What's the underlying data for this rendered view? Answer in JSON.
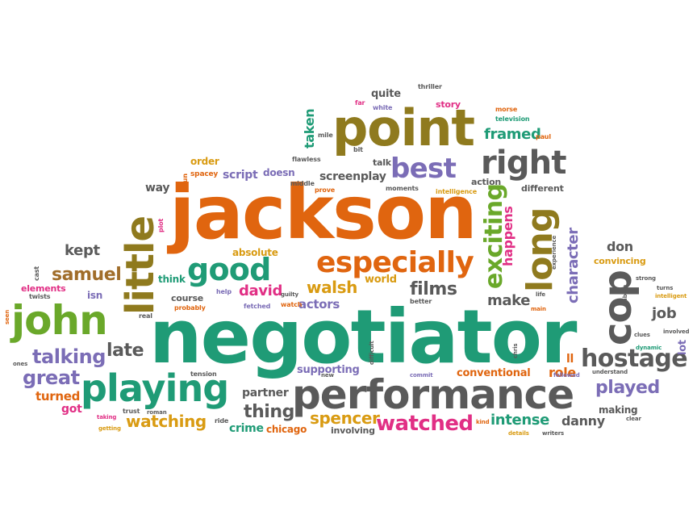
{
  "palette": {
    "green": "#1f9b76",
    "orange": "#e0650f",
    "olive": "#8f7a1e",
    "purple": "#7b6db6",
    "pink": "#e12f85",
    "gray": "#5a5a5a",
    "lime": "#6aa82a",
    "gold": "#d99b12",
    "brown": "#a06d2a"
  },
  "cloud": {
    "words": [
      {
        "id": "jackson",
        "text": "jackson",
        "color": "orange"
      },
      {
        "id": "negotiator",
        "text": "negotiator",
        "color": "green"
      },
      {
        "id": "point",
        "text": "point",
        "color": "olive"
      },
      {
        "id": "performance",
        "text": "performance",
        "color": "gray"
      },
      {
        "id": "playing",
        "text": "playing",
        "color": "green"
      },
      {
        "id": "john",
        "text": "john",
        "color": "lime"
      },
      {
        "id": "little",
        "text": "little",
        "color": "olive"
      },
      {
        "id": "good",
        "text": "good",
        "color": "green"
      },
      {
        "id": "especially",
        "text": "especially",
        "color": "orange"
      },
      {
        "id": "cop",
        "text": "cop",
        "color": "gray"
      },
      {
        "id": "long",
        "text": "long",
        "color": "olive"
      },
      {
        "id": "right",
        "text": "right",
        "color": "gray"
      },
      {
        "id": "best",
        "text": "best",
        "color": "purple"
      },
      {
        "id": "exciting",
        "text": "exciting",
        "color": "lime"
      },
      {
        "id": "hostage",
        "text": "hostage",
        "color": "gray"
      },
      {
        "id": "watched",
        "text": "watched",
        "color": "pink"
      },
      {
        "id": "talking",
        "text": "talking",
        "color": "purple"
      },
      {
        "id": "great",
        "text": "great",
        "color": "purple"
      },
      {
        "id": "samuel",
        "text": "samuel",
        "color": "brown"
      },
      {
        "id": "late",
        "text": "late",
        "color": "gray"
      },
      {
        "id": "watching",
        "text": "watching",
        "color": "gold"
      },
      {
        "id": "thing",
        "text": "thing",
        "color": "gray"
      },
      {
        "id": "spencer",
        "text": "spencer",
        "color": "gold"
      },
      {
        "id": "films",
        "text": "films",
        "color": "gray"
      },
      {
        "id": "walsh",
        "text": "walsh",
        "color": "gold"
      },
      {
        "id": "david",
        "text": "david",
        "color": "pink"
      },
      {
        "id": "actors",
        "text": "actors",
        "color": "purple"
      },
      {
        "id": "make",
        "text": "make",
        "color": "gray"
      },
      {
        "id": "character",
        "text": "character",
        "color": "purple"
      },
      {
        "id": "played",
        "text": "played",
        "color": "purple"
      },
      {
        "id": "intense",
        "text": "intense",
        "color": "green"
      },
      {
        "id": "danny",
        "text": "danny",
        "color": "gray"
      },
      {
        "id": "role",
        "text": "role",
        "color": "orange"
      },
      {
        "id": "kept",
        "text": "kept",
        "color": "gray"
      },
      {
        "id": "job",
        "text": "job",
        "color": "gray"
      },
      {
        "id": "framed",
        "text": "framed",
        "color": "green"
      },
      {
        "id": "screenplay",
        "text": "screenplay",
        "color": "gray"
      },
      {
        "id": "script",
        "text": "script",
        "color": "purple"
      },
      {
        "id": "happens",
        "text": "happens",
        "color": "pink"
      },
      {
        "id": "don",
        "text": "don",
        "color": "gray"
      },
      {
        "id": "turned",
        "text": "turned",
        "color": "orange"
      },
      {
        "id": "got",
        "text": "got",
        "color": "pink"
      },
      {
        "id": "crime",
        "text": "crime",
        "color": "green"
      },
      {
        "id": "chicago",
        "text": "chicago",
        "color": "orange"
      },
      {
        "id": "partner",
        "text": "partner",
        "color": "gray"
      },
      {
        "id": "supporting",
        "text": "supporting",
        "color": "purple"
      },
      {
        "id": "conventional",
        "text": "conventional",
        "color": "orange"
      },
      {
        "id": "ll",
        "text": "ll",
        "color": "orange"
      },
      {
        "id": "making",
        "text": "making",
        "color": "gray"
      },
      {
        "id": "world",
        "text": "world",
        "color": "gold"
      },
      {
        "id": "quite",
        "text": "quite",
        "color": "gray"
      },
      {
        "id": "taken",
        "text": "taken",
        "color": "green"
      },
      {
        "id": "way",
        "text": "way",
        "color": "gray"
      },
      {
        "id": "order",
        "text": "order",
        "color": "gold"
      },
      {
        "id": "isn",
        "text": "isn",
        "color": "purple"
      },
      {
        "id": "think",
        "text": "think",
        "color": "green"
      },
      {
        "id": "absolute",
        "text": "absolute",
        "color": "gold"
      },
      {
        "id": "course",
        "text": "course",
        "color": "gray"
      },
      {
        "id": "elements",
        "text": "elements",
        "color": "pink"
      },
      {
        "id": "story",
        "text": "story",
        "color": "pink"
      },
      {
        "id": "doesn",
        "text": "doesn",
        "color": "purple"
      },
      {
        "id": "action",
        "text": "action",
        "color": "gray"
      },
      {
        "id": "different",
        "text": "different",
        "color": "gray"
      },
      {
        "id": "convincing",
        "text": "convincing",
        "color": "gold"
      },
      {
        "id": "involving",
        "text": "involving",
        "color": "gray"
      },
      {
        "id": "lot",
        "text": "lot",
        "color": "purple"
      },
      {
        "id": "talk",
        "text": "talk",
        "color": "gray"
      },
      {
        "id": "thriller",
        "text": "thriller",
        "color": "gray"
      },
      {
        "id": "television",
        "text": "television",
        "color": "green"
      },
      {
        "id": "morse",
        "text": "morse",
        "color": "orange"
      },
      {
        "id": "paul",
        "text": "paul",
        "color": "orange"
      },
      {
        "id": "flawless",
        "text": "flawless",
        "color": "gray"
      },
      {
        "id": "spacey",
        "text": "spacey",
        "color": "orange"
      },
      {
        "id": "middle",
        "text": "middle",
        "color": "gray"
      },
      {
        "id": "prove",
        "text": "prove",
        "color": "orange"
      },
      {
        "id": "moments",
        "text": "moments",
        "color": "gray"
      },
      {
        "id": "intelligence",
        "text": "intelligence",
        "color": "gold"
      },
      {
        "id": "mile",
        "text": "mile",
        "color": "gray"
      },
      {
        "id": "bit",
        "text": "bit",
        "color": "gray"
      },
      {
        "id": "far",
        "text": "far",
        "color": "pink"
      },
      {
        "id": "white",
        "text": "white",
        "color": "purple"
      },
      {
        "id": "run",
        "text": "run",
        "color": "orange"
      },
      {
        "id": "plot",
        "text": "plot",
        "color": "pink"
      },
      {
        "id": "cast",
        "text": "cast",
        "color": "gray"
      },
      {
        "id": "twists",
        "text": "twists",
        "color": "gray"
      },
      {
        "id": "help",
        "text": "help",
        "color": "purple"
      },
      {
        "id": "probably",
        "text": "probably",
        "color": "orange"
      },
      {
        "id": "fetched",
        "text": "fetched",
        "color": "purple"
      },
      {
        "id": "guilty",
        "text": "guilty",
        "color": "gray"
      },
      {
        "id": "watch",
        "text": "watch",
        "color": "orange"
      },
      {
        "id": "better",
        "text": "better",
        "color": "gray"
      },
      {
        "id": "real",
        "text": "real",
        "color": "gray"
      },
      {
        "id": "seen",
        "text": "seen",
        "color": "orange"
      },
      {
        "id": "ones",
        "text": "ones",
        "color": "gray"
      },
      {
        "id": "tension",
        "text": "tension",
        "color": "gray"
      },
      {
        "id": "trust",
        "text": "trust",
        "color": "gray"
      },
      {
        "id": "roman",
        "text": "roman",
        "color": "gray"
      },
      {
        "id": "taking",
        "text": "taking",
        "color": "pink"
      },
      {
        "id": "getting",
        "text": "getting",
        "color": "gold"
      },
      {
        "id": "ride",
        "text": "ride",
        "color": "gray"
      },
      {
        "id": "new",
        "text": "new",
        "color": "gray"
      },
      {
        "id": "difficult",
        "text": "difficult",
        "color": "gray"
      },
      {
        "id": "commit",
        "text": "commit",
        "color": "purple"
      },
      {
        "id": "kind",
        "text": "kind",
        "color": "orange"
      },
      {
        "id": "details",
        "text": "details",
        "color": "gold"
      },
      {
        "id": "writers",
        "text": "writers",
        "color": "gray"
      },
      {
        "id": "followed",
        "text": "followed",
        "color": "purple"
      },
      {
        "id": "understand",
        "text": "understand",
        "color": "gray"
      },
      {
        "id": "chris",
        "text": "chris",
        "color": "gray"
      },
      {
        "id": "life",
        "text": "life",
        "color": "gray"
      },
      {
        "id": "main",
        "text": "main",
        "color": "orange"
      },
      {
        "id": "experience",
        "text": "experience",
        "color": "gray"
      },
      {
        "id": "strong",
        "text": "strong",
        "color": "gray"
      },
      {
        "id": "turns",
        "text": "turns",
        "color": "gray"
      },
      {
        "id": "intelligent",
        "text": "intelligent",
        "color": "gold"
      },
      {
        "id": "sabian",
        "text": "sabian",
        "color": "gray"
      },
      {
        "id": "clues",
        "text": "clues",
        "color": "gray"
      },
      {
        "id": "involved",
        "text": "involved",
        "color": "gray"
      },
      {
        "id": "dynamic",
        "text": "dynamic",
        "color": "green"
      },
      {
        "id": "clear",
        "text": "clear",
        "color": "gray"
      }
    ]
  }
}
